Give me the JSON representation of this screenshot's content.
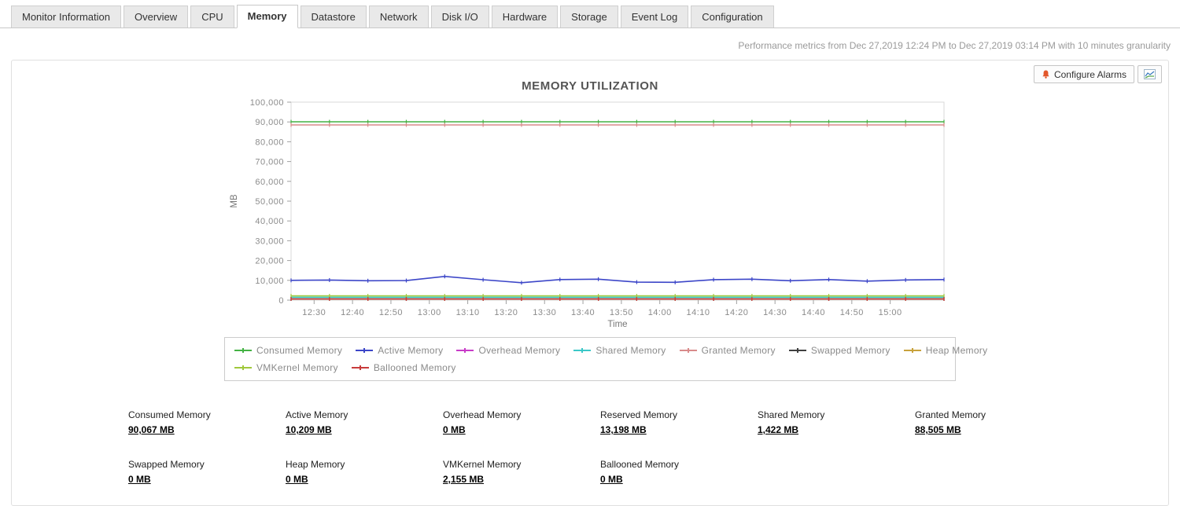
{
  "tabs": {
    "items": [
      {
        "label": "Monitor Information",
        "active": false
      },
      {
        "label": "Overview",
        "active": false
      },
      {
        "label": "CPU",
        "active": false
      },
      {
        "label": "Memory",
        "active": true
      },
      {
        "label": "Datastore",
        "active": false
      },
      {
        "label": "Network",
        "active": false
      },
      {
        "label": "Disk I/O",
        "active": false
      },
      {
        "label": "Hardware",
        "active": false
      },
      {
        "label": "Storage",
        "active": false
      },
      {
        "label": "Event Log",
        "active": false
      },
      {
        "label": "Configuration",
        "active": false
      }
    ]
  },
  "header": {
    "meta_text": "Performance metrics from Dec 27,2019 12:24 PM to Dec 27,2019 03:14 PM with 10 minutes granularity"
  },
  "panel": {
    "configure_alarms": "Configure Alarms",
    "title": "MEMORY UTILIZATION"
  },
  "chart_data": {
    "type": "line",
    "title": "MEMORY UTILIZATION",
    "xlabel": "Time",
    "ylabel": "MB",
    "ylim": [
      0,
      100000
    ],
    "ytick_step": 10000,
    "grid": false,
    "legend_position": "bottom",
    "legend_row_break": 7,
    "x_ticks": [
      "12:30",
      "12:40",
      "12:50",
      "13:00",
      "13:10",
      "13:20",
      "13:30",
      "13:40",
      "13:50",
      "14:00",
      "14:10",
      "14:20",
      "14:30",
      "14:40",
      "14:50",
      "15:00"
    ],
    "x_points": [
      "12:24",
      "12:34",
      "12:44",
      "12:54",
      "13:04",
      "13:14",
      "13:24",
      "13:34",
      "13:44",
      "13:54",
      "14:04",
      "14:14",
      "14:24",
      "14:34",
      "14:44",
      "14:54",
      "15:04",
      "15:14"
    ],
    "series": [
      {
        "name": "Consumed Memory",
        "color": "#44b244",
        "values": [
          90067,
          90067,
          90067,
          90067,
          90067,
          90067,
          90067,
          90067,
          90067,
          90067,
          90067,
          90067,
          90067,
          90067,
          90067,
          90067,
          90067,
          90067
        ]
      },
      {
        "name": "Active Memory",
        "color": "#3c46c8",
        "values": [
          10000,
          10150,
          9800,
          9900,
          12000,
          10300,
          8800,
          10400,
          10600,
          9100,
          9000,
          10350,
          10600,
          9800,
          10400,
          9600,
          10200,
          10400
        ]
      },
      {
        "name": "Overhead Memory",
        "color": "#c83cc8",
        "values": [
          0,
          0,
          0,
          0,
          0,
          0,
          0,
          0,
          0,
          0,
          0,
          0,
          0,
          0,
          0,
          0,
          0,
          0
        ]
      },
      {
        "name": "Shared Memory",
        "color": "#3cc8c8",
        "values": [
          1422,
          1422,
          1422,
          1422,
          1422,
          1422,
          1422,
          1422,
          1422,
          1422,
          1422,
          1422,
          1422,
          1422,
          1422,
          1422,
          1422,
          1422
        ]
      },
      {
        "name": "Granted Memory",
        "color": "#d98b8b",
        "values": [
          88505,
          88505,
          88505,
          88505,
          88505,
          88505,
          88505,
          88505,
          88505,
          88505,
          88505,
          88505,
          88505,
          88505,
          88505,
          88505,
          88505,
          88505
        ]
      },
      {
        "name": "Swapped Memory",
        "color": "#404040",
        "values": [
          0,
          0,
          0,
          0,
          0,
          0,
          0,
          0,
          0,
          0,
          0,
          0,
          0,
          0,
          0,
          0,
          0,
          0
        ]
      },
      {
        "name": "Heap Memory",
        "color": "#c8a23c",
        "values": [
          0,
          0,
          0,
          0,
          0,
          0,
          0,
          0,
          0,
          0,
          0,
          0,
          0,
          0,
          0,
          0,
          0,
          0
        ]
      },
      {
        "name": "VMKernel Memory",
        "color": "#a0c83c",
        "values": [
          2155,
          2155,
          2155,
          2155,
          2155,
          2155,
          2155,
          2155,
          2155,
          2155,
          2155,
          2155,
          2155,
          2155,
          2155,
          2155,
          2155,
          2155
        ]
      },
      {
        "name": "Ballooned Memory",
        "color": "#c83c3c",
        "values": [
          0,
          0,
          0,
          0,
          0,
          0,
          0,
          0,
          0,
          0,
          0,
          0,
          0,
          0,
          0,
          0,
          0,
          0
        ]
      }
    ]
  },
  "stats": [
    {
      "label": "Consumed Memory",
      "value": "90,067 MB"
    },
    {
      "label": "Active Memory",
      "value": "10,209 MB"
    },
    {
      "label": "Overhead Memory",
      "value": "0 MB"
    },
    {
      "label": "Reserved Memory",
      "value": "13,198 MB"
    },
    {
      "label": "Shared Memory",
      "value": "1,422 MB"
    },
    {
      "label": "Granted Memory",
      "value": "88,505 MB"
    },
    {
      "label": "Swapped Memory",
      "value": "0 MB"
    },
    {
      "label": "Heap Memory",
      "value": "0 MB"
    },
    {
      "label": "VMKernel Memory",
      "value": "2,155 MB"
    },
    {
      "label": "Ballooned Memory",
      "value": "0 MB"
    }
  ]
}
